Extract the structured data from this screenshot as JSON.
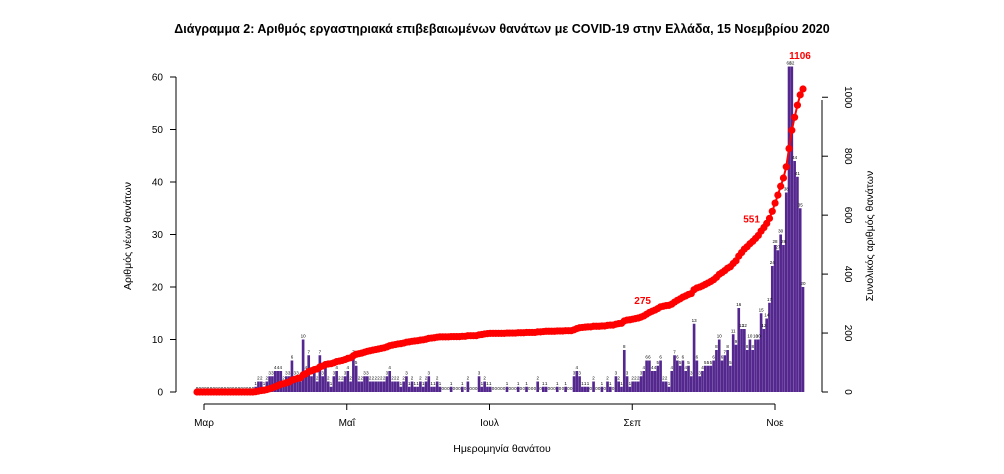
{
  "chart_data": {
    "type": "bar",
    "title": "Διάγραμμα 2: Αριθμός εργαστηριακά επιβεβαιωμένων θανάτων με COVID-19 στην Ελλάδα, 15 Νοεμβρίου 2020",
    "xlabel": "Ημερομηνία θανάτου",
    "ylabel": "Αριθμός νέων θανάτων",
    "y2label": "Συνολικός αριθμός θανάτων",
    "x_ticks": [
      "Μαρ",
      "Μαΐ",
      "Ιουλ",
      "Σεπ",
      "Νοε"
    ],
    "y_ticks": [
      0,
      10,
      20,
      30,
      40,
      50,
      60
    ],
    "y2_ticks": [
      0,
      200,
      400,
      600,
      800,
      1000
    ],
    "ylim": [
      0,
      63
    ],
    "y2lim": [
      0,
      1130
    ],
    "bar_color": "#54278f",
    "cumulative_color": "#ff0000",
    "series": [
      {
        "name": "new_deaths",
        "values": [
          0,
          0,
          0,
          0,
          0,
          0,
          0,
          0,
          0,
          0,
          0,
          0,
          0,
          0,
          0,
          0,
          0,
          0,
          0,
          0,
          0,
          1,
          2,
          2,
          1,
          2,
          3,
          3,
          4,
          4,
          4,
          2,
          3,
          3,
          6,
          3,
          3,
          2,
          10,
          4,
          7,
          3,
          4,
          2,
          7,
          3,
          5,
          2,
          1,
          3,
          4,
          2,
          2,
          3,
          4,
          2,
          7,
          5,
          2,
          2,
          3,
          3,
          2,
          2,
          2,
          2,
          2,
          2,
          3,
          4,
          2,
          2,
          2,
          1,
          2,
          3,
          1,
          2,
          1,
          1,
          2,
          1,
          2,
          3,
          1,
          1,
          2,
          1,
          0,
          0,
          0,
          1,
          0,
          0,
          0,
          1,
          0,
          2,
          0,
          0,
          0,
          3,
          1,
          2,
          1,
          1,
          0,
          0,
          0,
          0,
          0,
          1,
          0,
          0,
          0,
          1,
          0,
          0,
          1,
          0,
          0,
          0,
          2,
          0,
          1,
          1,
          0,
          0,
          0,
          1,
          0,
          0,
          1,
          0,
          0,
          3,
          4,
          3,
          1,
          1,
          1,
          0,
          2,
          0,
          0,
          1,
          0,
          2,
          1,
          0,
          3,
          2,
          1,
          8,
          3,
          1,
          2,
          2,
          2,
          3,
          4,
          6,
          6,
          4,
          4,
          5,
          6,
          2,
          2,
          1,
          4,
          7,
          6,
          5,
          6,
          4,
          5,
          3,
          13,
          6,
          3,
          4,
          5,
          5,
          5,
          6,
          8,
          10,
          6,
          7,
          8,
          5,
          11,
          9,
          16,
          12,
          12,
          8,
          10,
          8,
          10,
          10,
          15,
          12,
          14,
          17,
          24,
          28,
          27,
          30,
          28,
          38,
          62,
          62,
          44,
          41,
          35,
          20
        ]
      },
      {
        "name": "cumulative",
        "values": [
          0,
          0,
          0,
          0,
          0,
          0,
          0,
          0,
          0,
          0,
          0,
          0,
          0,
          0,
          0,
          0,
          0,
          0,
          0,
          0,
          0,
          1,
          3,
          5,
          6,
          8,
          11,
          14,
          18,
          22,
          26,
          28,
          31,
          34,
          40,
          43,
          46,
          48,
          58,
          62,
          69,
          72,
          76,
          78,
          85,
          88,
          93,
          95,
          96,
          99,
          103,
          105,
          107,
          110,
          114,
          116,
          123,
          128,
          130,
          132,
          135,
          138,
          140,
          142,
          144,
          146,
          148,
          150,
          153,
          157,
          159,
          161,
          163,
          164,
          166,
          169,
          170,
          172,
          173,
          174,
          176,
          177,
          179,
          182,
          183,
          184,
          186,
          187,
          187,
          187,
          187,
          188,
          188,
          188,
          188,
          189,
          189,
          191,
          191,
          191,
          191,
          194,
          195,
          197,
          198,
          199,
          199,
          199,
          199,
          199,
          199,
          200,
          200,
          200,
          200,
          201,
          201,
          201,
          202,
          202,
          202,
          202,
          204,
          204,
          205,
          206,
          206,
          206,
          206,
          207,
          207,
          207,
          208,
          208,
          208,
          211,
          215,
          218,
          219,
          220,
          221,
          221,
          223,
          223,
          223,
          224,
          224,
          226,
          227,
          227,
          230,
          232,
          233,
          241,
          244,
          245,
          247,
          249,
          251,
          254,
          258,
          264,
          270,
          274,
          278,
          283,
          289,
          291,
          293,
          294,
          298,
          305,
          311,
          316,
          322,
          326,
          331,
          334,
          347,
          353,
          356,
          360,
          365,
          370,
          375,
          381,
          389,
          399,
          405,
          412,
          420,
          425,
          436,
          445,
          461,
          473,
          485,
          493,
          503,
          511,
          521,
          531,
          546,
          558,
          572,
          589,
          613,
          641,
          668,
          698,
          726,
          764,
          826,
          888,
          932,
          973,
          1008,
          1028
        ]
      }
    ],
    "annotations": [
      {
        "text": "275",
        "series_value": 275
      },
      {
        "text": "551",
        "series_value": 551
      },
      {
        "text": "1106",
        "series_value": 1106
      }
    ],
    "legend": "none",
    "grid": false
  }
}
